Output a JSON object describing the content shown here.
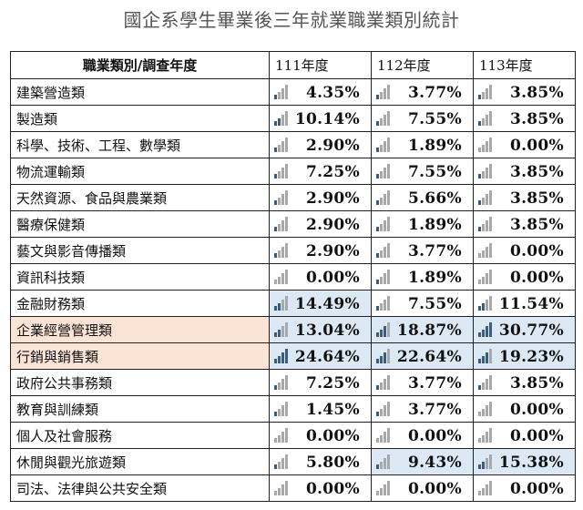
{
  "title": "國企系學生畢業後三年就業職業類別統計",
  "header": {
    "category": "職業類別/調查年度",
    "years": [
      "111年度",
      "112年度",
      "113年度"
    ]
  },
  "rows": [
    {
      "category": "建築營造類",
      "values": [
        "4.35%",
        "3.77%",
        "3.85%"
      ]
    },
    {
      "category": "製造類",
      "values": [
        "10.14%",
        "7.55%",
        "3.85%"
      ]
    },
    {
      "category": "科學、技術、工程、數學類",
      "values": [
        "2.90%",
        "1.89%",
        "0.00%"
      ]
    },
    {
      "category": "物流運輸類",
      "values": [
        "7.25%",
        "7.55%",
        "3.85%"
      ]
    },
    {
      "category": "天然資源、食品與農業類",
      "values": [
        "2.90%",
        "5.66%",
        "3.85%"
      ]
    },
    {
      "category": "醫療保健類",
      "values": [
        "2.90%",
        "1.89%",
        "3.85%"
      ]
    },
    {
      "category": "藝文與影音傳播類",
      "values": [
        "2.90%",
        "3.77%",
        "0.00%"
      ]
    },
    {
      "category": "資訊科技類",
      "values": [
        "0.00%",
        "1.89%",
        "0.00%"
      ]
    },
    {
      "category": "金融財務類",
      "values": [
        "14.49%",
        "7.55%",
        "11.54%"
      ]
    },
    {
      "category": "企業經營管理類",
      "values": [
        "13.04%",
        "18.87%",
        "30.77%"
      ]
    },
    {
      "category": "行銷與銷售類",
      "values": [
        "24.64%",
        "22.64%",
        "19.23%"
      ]
    },
    {
      "category": "政府公共事務類",
      "values": [
        "7.25%",
        "3.77%",
        "3.85%"
      ]
    },
    {
      "category": "教育與訓練類",
      "values": [
        "1.45%",
        "3.77%",
        "0.00%"
      ]
    },
    {
      "category": "個人及社會服務",
      "values": [
        "0.00%",
        "0.00%",
        "0.00%"
      ]
    },
    {
      "category": "休閒與觀光旅遊類",
      "values": [
        "5.80%",
        "9.43%",
        "15.38%"
      ]
    },
    {
      "category": "司法、法律與公共安全類",
      "values": [
        "0.00%",
        "0.00%",
        "0.00%"
      ]
    }
  ],
  "highlights": {
    "category_rows": [
      9,
      10
    ],
    "value_cells": [
      [
        8,
        0
      ],
      [
        9,
        0
      ],
      [
        9,
        1
      ],
      [
        9,
        2
      ],
      [
        10,
        0
      ],
      [
        10,
        1
      ],
      [
        10,
        2
      ],
      [
        14,
        1
      ],
      [
        14,
        2
      ]
    ],
    "category_color": "#fbe3d6",
    "value_color": "#dce9f5"
  },
  "indicator_icon": "signal-bars-icon",
  "indicator_colors": {
    "active": "#2f5f8f",
    "inactive": "#a8a8a8"
  },
  "indicator_levels": [
    [
      1,
      1,
      1
    ],
    [
      2,
      1,
      1
    ],
    [
      1,
      1,
      0
    ],
    [
      1,
      1,
      1
    ],
    [
      1,
      1,
      1
    ],
    [
      1,
      1,
      1
    ],
    [
      1,
      1,
      0
    ],
    [
      0,
      1,
      0
    ],
    [
      2,
      1,
      2
    ],
    [
      2,
      3,
      4
    ],
    [
      4,
      3,
      3
    ],
    [
      1,
      1,
      1
    ],
    [
      1,
      1,
      0
    ],
    [
      0,
      0,
      0
    ],
    [
      1,
      1,
      2
    ],
    [
      0,
      0,
      0
    ]
  ]
}
